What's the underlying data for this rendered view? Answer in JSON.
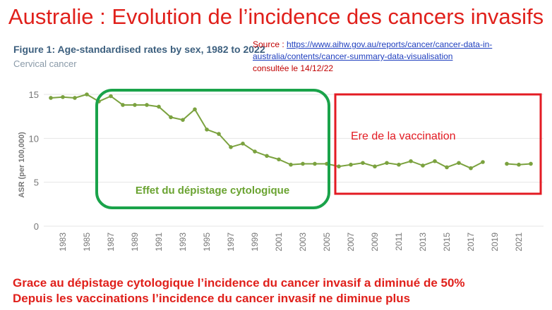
{
  "slide": {
    "title": "Australie : Evolution de l’incidence des cancers invasifs"
  },
  "figure": {
    "title": "Figure 1: Age-standardised rates by sex, 1982 to 2022",
    "subtitle": "Cervical cancer"
  },
  "source": {
    "prefix": "Source : ",
    "url": "https://www.aihw.gov.au/reports/cancer/cancer-data-in-australia/contents/cancer-summary-data-visualisation",
    "consulted": "consultée le 14/12/22"
  },
  "annotations": {
    "screening_label": "Effet du dépistage cytologique",
    "vaccination_label": "Ere de la vaccination",
    "screening_color": "#1aa34a",
    "vaccination_color": "#e31b23"
  },
  "conclusions": {
    "line1": "Grace au dépistage cytologique l’incidence du cancer invasif a diminué de 50%",
    "line2": "Depuis les vaccinations l’incidence du cancer invasif ne diminue plus"
  },
  "colors": {
    "title": "#e0201b",
    "series": "#7ba23f",
    "grid": "#e6e6e6",
    "axis_text": "#777777"
  },
  "chart_data": {
    "type": "line",
    "ylabel": "ASR (per 100,000)",
    "xlabel": "",
    "ylim": [
      0,
      15
    ],
    "yticks": [
      0,
      5,
      10,
      15
    ],
    "xticks": [
      1983,
      1985,
      1987,
      1989,
      1991,
      1993,
      1995,
      1997,
      1999,
      2001,
      2003,
      2005,
      2007,
      2009,
      2011,
      2013,
      2015,
      2017,
      2019,
      2021
    ],
    "grid": true,
    "series": [
      {
        "x": [
          1982,
          1983,
          1984,
          1985,
          1986,
          1987,
          1988,
          1989,
          1990,
          1991,
          1992,
          1993,
          1994,
          1995,
          1996,
          1997,
          1998,
          1999,
          2000,
          2001,
          2002,
          2003,
          2004,
          2005,
          2006,
          2007,
          2008,
          2009,
          2010,
          2011,
          2012,
          2013,
          2014,
          2015,
          2016,
          2017,
          2018,
          2019,
          2020,
          2021,
          2022
        ],
        "values": [
          14.6,
          14.7,
          14.6,
          15.0,
          14.2,
          14.8,
          13.8,
          13.8,
          13.8,
          13.6,
          12.4,
          12.1,
          13.3,
          11.0,
          10.5,
          9.0,
          9.4,
          8.5,
          8.0,
          7.6,
          7.0,
          7.1,
          7.1,
          7.1,
          6.8,
          7.0,
          7.2,
          6.8,
          7.2,
          7.0,
          7.4,
          6.9,
          7.4,
          6.7,
          7.2,
          6.6,
          7.3,
          null,
          7.1,
          7.0,
          7.1
        ]
      }
    ]
  }
}
